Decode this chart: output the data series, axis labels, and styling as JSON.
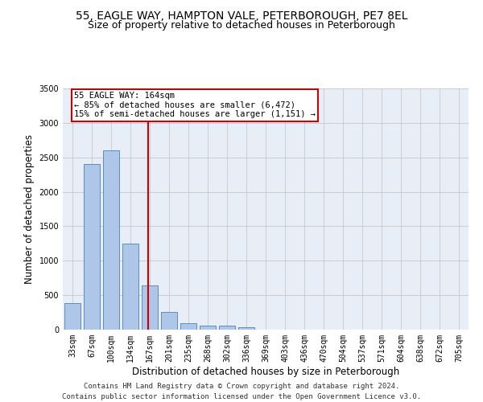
{
  "title": "55, EAGLE WAY, HAMPTON VALE, PETERBOROUGH, PE7 8EL",
  "subtitle": "Size of property relative to detached houses in Peterborough",
  "xlabel": "Distribution of detached houses by size in Peterborough",
  "ylabel": "Number of detached properties",
  "footer_line1": "Contains HM Land Registry data © Crown copyright and database right 2024.",
  "footer_line2": "Contains public sector information licensed under the Open Government Licence v3.0.",
  "categories": [
    "33sqm",
    "67sqm",
    "100sqm",
    "134sqm",
    "167sqm",
    "201sqm",
    "235sqm",
    "268sqm",
    "302sqm",
    "336sqm",
    "369sqm",
    "403sqm",
    "436sqm",
    "470sqm",
    "504sqm",
    "537sqm",
    "571sqm",
    "604sqm",
    "638sqm",
    "672sqm",
    "705sqm"
  ],
  "values": [
    380,
    2400,
    2600,
    1250,
    640,
    260,
    95,
    60,
    55,
    40,
    0,
    0,
    0,
    0,
    0,
    0,
    0,
    0,
    0,
    0,
    0
  ],
  "bar_color": "#aec6e8",
  "bar_edge_color": "#4f7fb5",
  "annotation_text_line1": "55 EAGLE WAY: 164sqm",
  "annotation_text_line2": "← 85% of detached houses are smaller (6,472)",
  "annotation_text_line3": "15% of semi-detached houses are larger (1,151) →",
  "annotation_box_color": "#cc0000",
  "ylim": [
    0,
    3500
  ],
  "yticks": [
    0,
    500,
    1000,
    1500,
    2000,
    2500,
    3000,
    3500
  ],
  "grid_color": "#cccccc",
  "bg_color": "#e8eef8",
  "title_fontsize": 10,
  "subtitle_fontsize": 9,
  "axis_label_fontsize": 8.5,
  "tick_fontsize": 7,
  "footer_fontsize": 6.5,
  "annotation_fontsize": 7.5
}
